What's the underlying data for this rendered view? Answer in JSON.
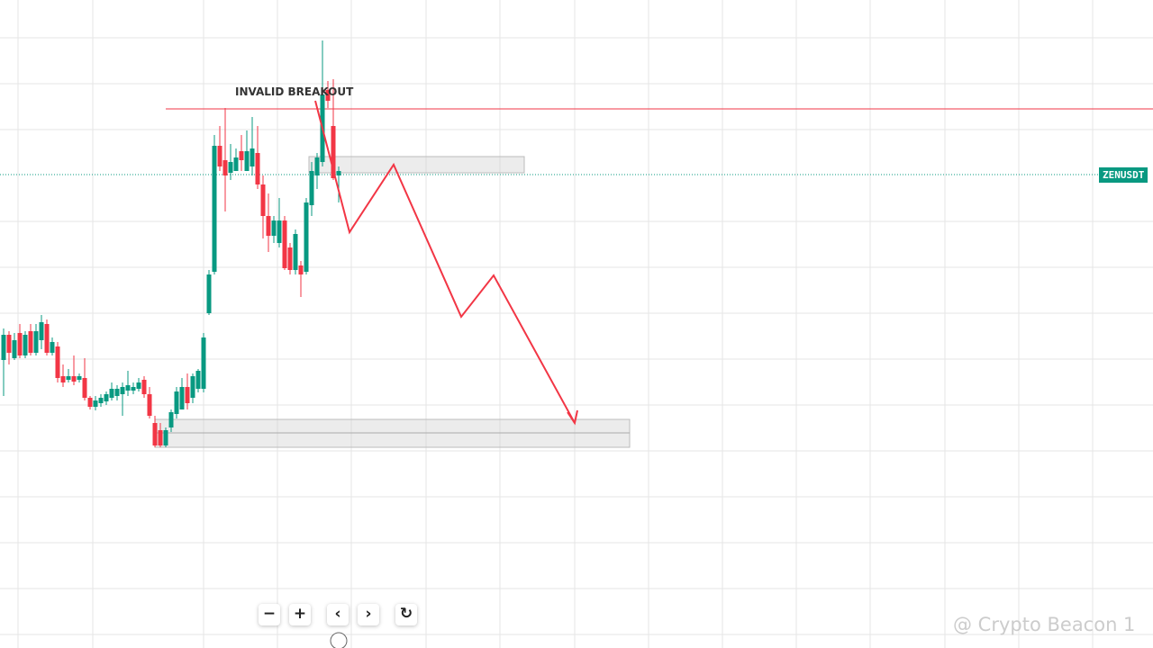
{
  "annotation": "INVALID BREAKOUT",
  "symbol_label": "ZENUSDT",
  "watermark": "@ Crypto Beacon 1",
  "toolbar": {
    "zoom_out": "−",
    "zoom_in": "+",
    "scroll_left": "‹",
    "scroll_right": "›",
    "reset": "↻"
  }
}
